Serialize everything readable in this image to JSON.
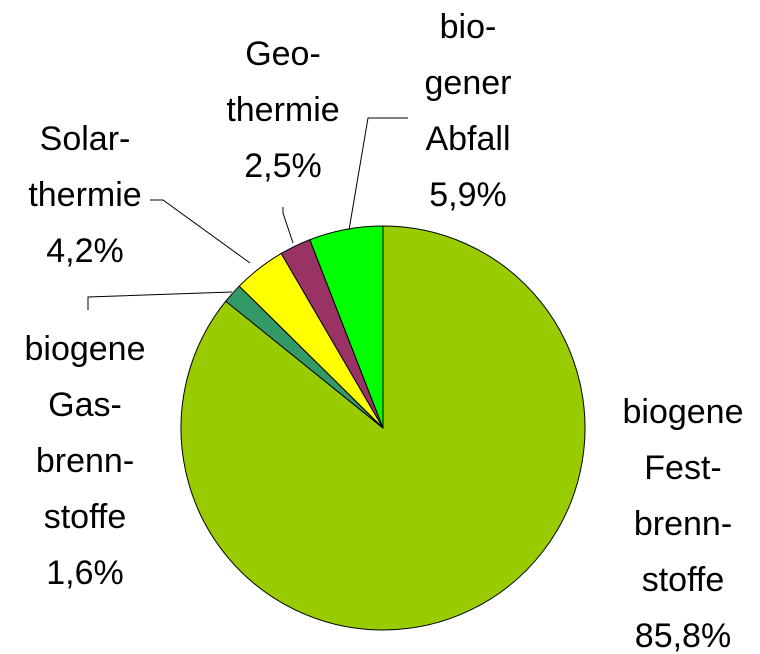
{
  "chart_data": {
    "type": "pie",
    "categories": [
      "biogene\nFest-\nbrenn-\nstoffe",
      "biogene\nGas-\nbrenn-\nstoffe",
      "Solar-\nthermie",
      "Geo-\nthermie",
      "bio-\ngener\nAbfall"
    ],
    "values": [
      85.8,
      1.6,
      4.2,
      2.5,
      5.9
    ],
    "value_labels": [
      "85,8%",
      "1,6%",
      "4,2%",
      "2,5%",
      "5,9%"
    ],
    "colors": [
      "#99cc00",
      "#339966",
      "#ffff00",
      "#993366",
      "#00ff00"
    ]
  }
}
